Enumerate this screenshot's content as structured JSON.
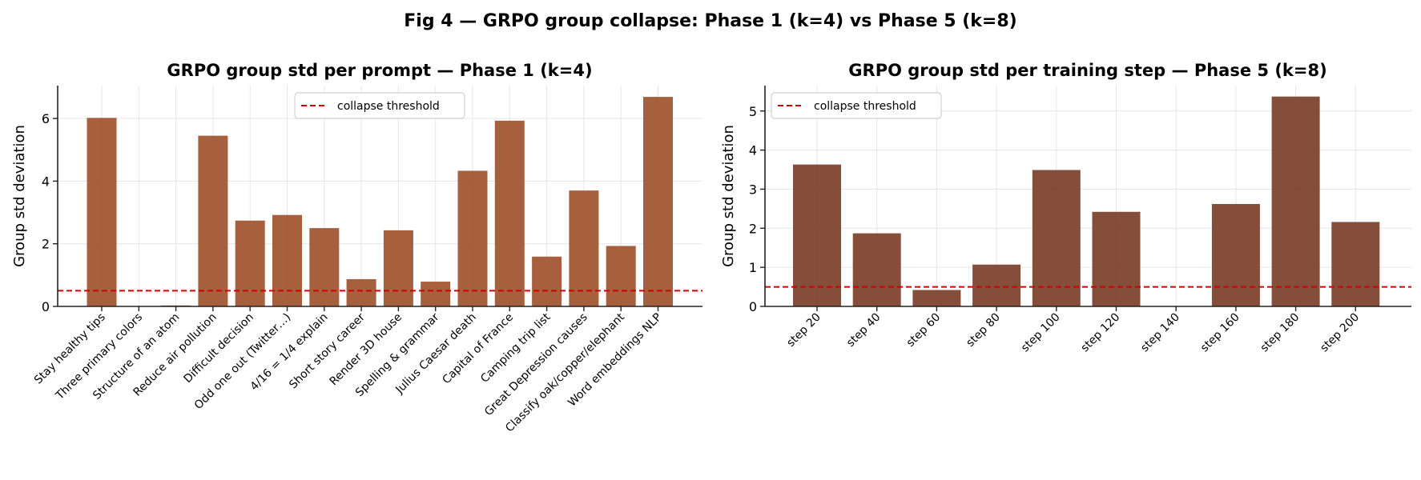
{
  "figure": {
    "title": "Fig 4 — GRPO group collapse: Phase 1 (k=4) vs Phase 5 (k=8)"
  },
  "chart_data": [
    {
      "type": "bar",
      "title": "GRPO group std per prompt — Phase 1 (k=4)",
      "xlabel": "",
      "ylabel": "Group std deviation",
      "ylim": [
        0,
        7.05
      ],
      "yticks": [
        0,
        2,
        4,
        6
      ],
      "grid": true,
      "bar_color": "#a0522d",
      "categories": [
        "Stay healthy tips",
        "Three primary colors",
        "Structure of an atom",
        "Reduce air pollution",
        "Difficult decision",
        "Odd one out (Twitter…)",
        "4/16 = 1/4 explain",
        "Short story career",
        "Render 3D house",
        "Spelling & grammar",
        "Julius Caesar death",
        "Capital of France",
        "Camping trip list",
        "Great Depression causes",
        "Classify oak/copper/elephant",
        "Word embeddings NLP"
      ],
      "values": [
        6.02,
        0.0,
        0.03,
        5.45,
        2.74,
        2.92,
        2.5,
        0.87,
        2.43,
        0.79,
        4.33,
        5.93,
        1.59,
        3.7,
        1.93,
        6.69
      ],
      "threshold": {
        "value": 0.5,
        "label": "collapse threshold",
        "color": "#d00000"
      },
      "legend": "top-center"
    },
    {
      "type": "bar",
      "title": "GRPO group std per training step — Phase 5 (k=8)",
      "xlabel": "",
      "ylabel": "Group std deviation",
      "ylim": [
        0,
        5.65
      ],
      "yticks": [
        0,
        1,
        2,
        3,
        4,
        5
      ],
      "grid": true,
      "bar_color": "#7b3f2a",
      "categories": [
        "step 20",
        "step 40",
        "step 60",
        "step 80",
        "step 100",
        "step 120",
        "step 140",
        "step 160",
        "step 180",
        "step 200"
      ],
      "values": [
        3.63,
        1.87,
        0.42,
        1.07,
        3.49,
        2.42,
        0.0,
        2.62,
        5.37,
        2.16
      ],
      "threshold": {
        "value": 0.5,
        "label": "collapse threshold",
        "color": "#d00000"
      },
      "legend": "top-left"
    }
  ]
}
